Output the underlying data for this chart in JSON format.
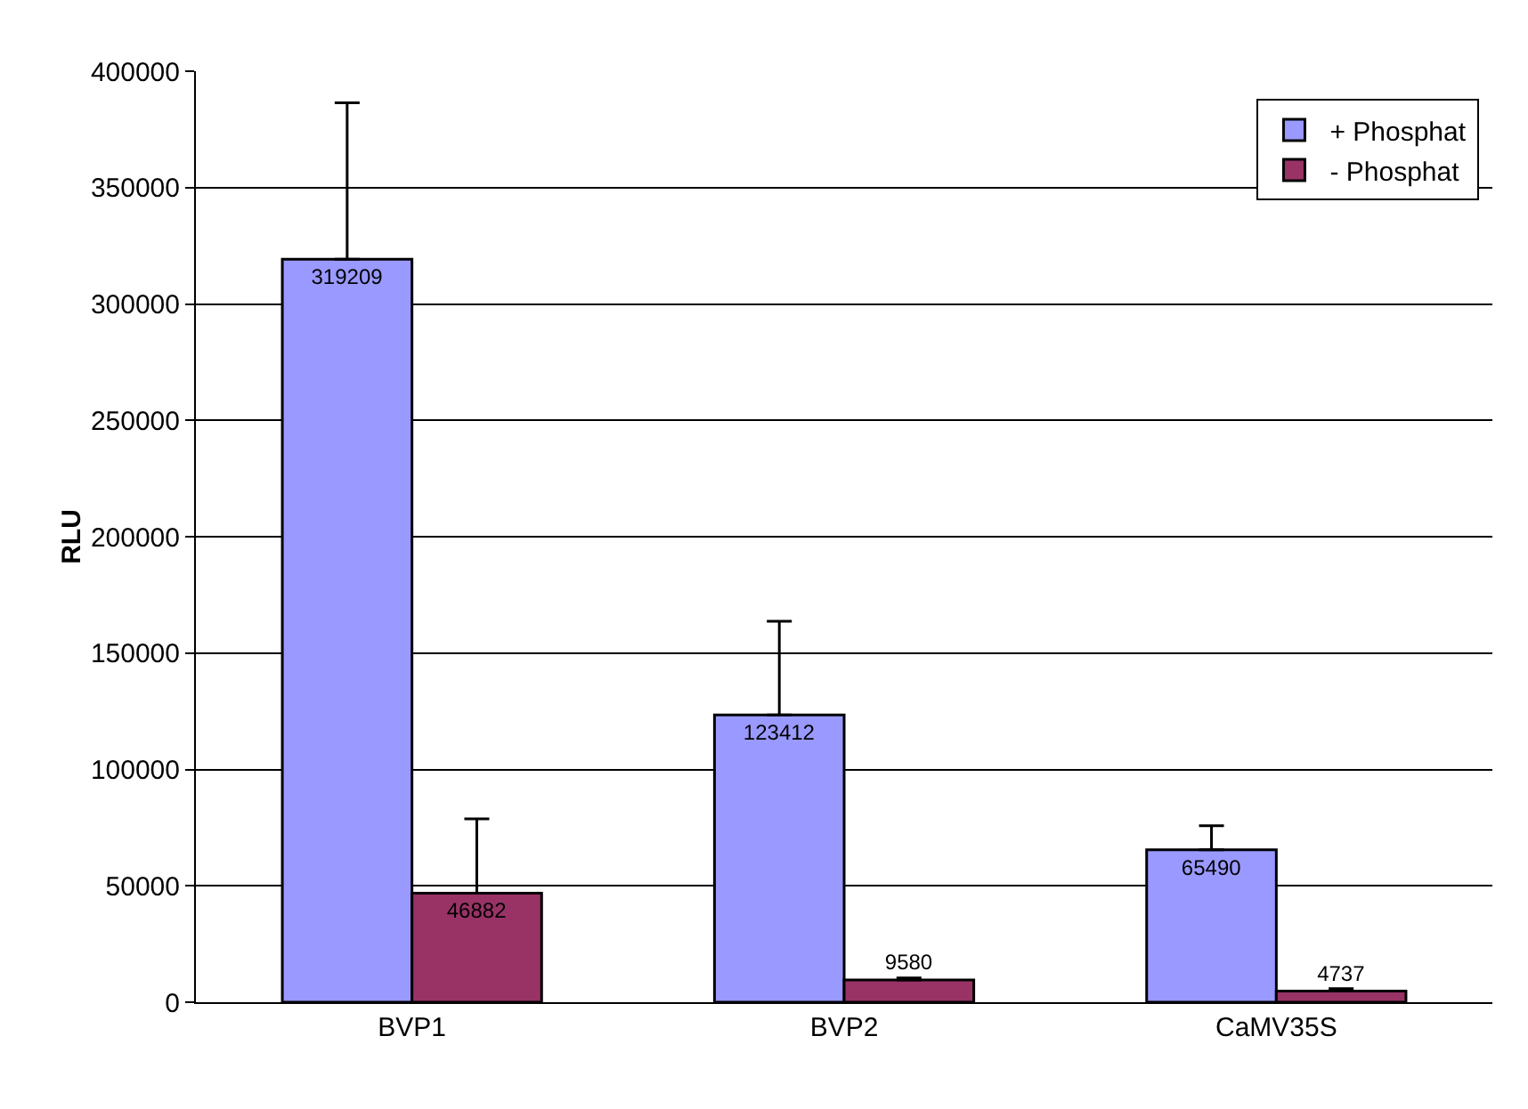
{
  "chart_data": {
    "type": "bar",
    "ylabel": "RLU",
    "categories": [
      "BVP1",
      "BVP2",
      "CaMV35S"
    ],
    "series": [
      {
        "name": "+ Phosphat",
        "color": "#9999ff",
        "values": [
          319209,
          123412,
          65490
        ],
        "errors": [
          [
            319209,
            386400
          ],
          [
            123412,
            163700
          ],
          [
            65490,
            75800
          ]
        ]
      },
      {
        "name": "- Phosphat",
        "color": "#993366",
        "values": [
          46882,
          9580,
          4737
        ],
        "errors": [
          [
            46882,
            78800
          ],
          [
            9580,
            10400
          ],
          [
            4737,
            5800
          ]
        ]
      }
    ],
    "ylim": [
      0,
      400000
    ],
    "yticks": [
      0,
      50000,
      100000,
      150000,
      200000,
      250000,
      300000,
      350000,
      400000
    ],
    "grid": "y",
    "legend": "top right",
    "data_labels": true
  }
}
